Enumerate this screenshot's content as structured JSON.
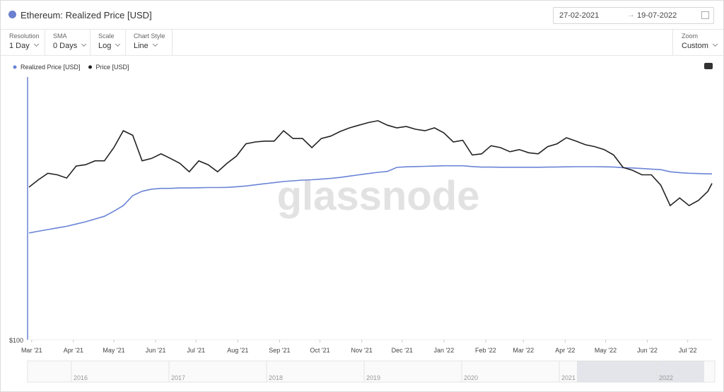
{
  "header": {
    "title": "Ethereum: Realized Price [USD]",
    "date_from": "27-02-2021",
    "date_to": "19-07-2022"
  },
  "controls": [
    {
      "label": "Resolution",
      "value": "1 Day"
    },
    {
      "label": "SMA",
      "value": "0 Days"
    },
    {
      "label": "Scale",
      "value": "Log"
    },
    {
      "label": "Chart Style",
      "value": "Line"
    }
  ],
  "zoom": {
    "label": "Zoom",
    "value": "Custom"
  },
  "watermark": "glassnode",
  "navigator": {
    "years": [
      "2016",
      "2017",
      "2018",
      "2019",
      "2020",
      "2021",
      "2022"
    ]
  },
  "chart_data": {
    "type": "line",
    "log_scale": true,
    "legend": "top-left",
    "xlim": [
      "2021-02-27",
      "2022-07-19"
    ],
    "xticks": [
      {
        "value": "2021-03-01",
        "label": "Mar '21"
      },
      {
        "value": "2021-04-01",
        "label": "Apr '21"
      },
      {
        "value": "2021-05-01",
        "label": "May '21"
      },
      {
        "value": "2021-06-01",
        "label": "Jun '21"
      },
      {
        "value": "2021-07-01",
        "label": "Jul '21"
      },
      {
        "value": "2021-08-01",
        "label": "Aug '21"
      },
      {
        "value": "2021-09-01",
        "label": "Sep '21"
      },
      {
        "value": "2021-10-01",
        "label": "Oct '21"
      },
      {
        "value": "2021-11-01",
        "label": "Nov '21"
      },
      {
        "value": "2021-12-01",
        "label": "Dec '21"
      },
      {
        "value": "2022-01-01",
        "label": "Jan '22"
      },
      {
        "value": "2022-02-01",
        "label": "Feb '22"
      },
      {
        "value": "2022-03-01",
        "label": "Mar '22"
      },
      {
        "value": "2022-04-01",
        "label": "Apr '22"
      },
      {
        "value": "2022-05-01",
        "label": "May '22"
      },
      {
        "value": "2022-06-01",
        "label": "Jun '22"
      },
      {
        "value": "2022-07-01",
        "label": "Jul '22"
      }
    ],
    "ylim": [
      100,
      10000
    ],
    "yticks": [
      {
        "value": 100,
        "label": "$100"
      }
    ],
    "x": [
      "2021-02-27",
      "2021-03-06",
      "2021-03-13",
      "2021-03-20",
      "2021-03-27",
      "2021-04-03",
      "2021-04-10",
      "2021-04-17",
      "2021-04-24",
      "2021-05-01",
      "2021-05-08",
      "2021-05-15",
      "2021-05-22",
      "2021-05-29",
      "2021-06-05",
      "2021-06-12",
      "2021-06-19",
      "2021-06-26",
      "2021-07-03",
      "2021-07-10",
      "2021-07-17",
      "2021-07-24",
      "2021-07-31",
      "2021-08-07",
      "2021-08-14",
      "2021-08-21",
      "2021-08-28",
      "2021-09-04",
      "2021-09-11",
      "2021-09-18",
      "2021-09-25",
      "2021-10-02",
      "2021-10-09",
      "2021-10-16",
      "2021-10-23",
      "2021-10-30",
      "2021-11-06",
      "2021-11-13",
      "2021-11-20",
      "2021-11-27",
      "2021-12-04",
      "2021-12-11",
      "2021-12-18",
      "2021-12-25",
      "2022-01-01",
      "2022-01-08",
      "2022-01-15",
      "2022-01-22",
      "2022-01-29",
      "2022-02-05",
      "2022-02-12",
      "2022-02-19",
      "2022-02-26",
      "2022-03-05",
      "2022-03-12",
      "2022-03-19",
      "2022-03-26",
      "2022-04-02",
      "2022-04-09",
      "2022-04-16",
      "2022-04-23",
      "2022-04-30",
      "2022-05-07",
      "2022-05-14",
      "2022-05-21",
      "2022-05-28",
      "2022-06-04",
      "2022-06-11",
      "2022-06-18",
      "2022-06-25",
      "2022-07-02",
      "2022-07-09",
      "2022-07-16",
      "2022-07-19"
    ],
    "series": [
      {
        "name": "Realized Price [USD]",
        "color": "#6b84d6",
        "values": [
          650,
          670,
          690,
          710,
          730,
          760,
          790,
          830,
          870,
          950,
          1050,
          1250,
          1350,
          1400,
          1420,
          1420,
          1430,
          1430,
          1435,
          1440,
          1440,
          1445,
          1460,
          1480,
          1510,
          1540,
          1570,
          1600,
          1620,
          1640,
          1650,
          1670,
          1690,
          1720,
          1760,
          1800,
          1840,
          1880,
          1910,
          2050,
          2070,
          2080,
          2090,
          2100,
          2110,
          2110,
          2110,
          2080,
          2060,
          2060,
          2055,
          2055,
          2055,
          2055,
          2055,
          2060,
          2065,
          2070,
          2075,
          2075,
          2075,
          2070,
          2065,
          2040,
          2030,
          2010,
          1990,
          1970,
          1900,
          1870,
          1850,
          1840,
          1830,
          1830
        ]
      },
      {
        "name": "Price [USD]",
        "color": "#222222",
        "values": [
          1450,
          1650,
          1850,
          1800,
          1700,
          2100,
          2150,
          2300,
          2300,
          2900,
          3900,
          3600,
          2300,
          2400,
          2600,
          2400,
          2200,
          1900,
          2300,
          2150,
          1900,
          2200,
          2500,
          3100,
          3200,
          3250,
          3250,
          3900,
          3400,
          3400,
          2900,
          3400,
          3550,
          3850,
          4100,
          4300,
          4500,
          4650,
          4300,
          4100,
          4200,
          4000,
          3900,
          4100,
          3750,
          3200,
          3300,
          2550,
          2600,
          3000,
          2900,
          2700,
          2800,
          2650,
          2600,
          2950,
          3100,
          3450,
          3250,
          3050,
          2950,
          2800,
          2550,
          2050,
          1950,
          1800,
          1800,
          1500,
          1050,
          1200,
          1050,
          1150,
          1350,
          1550
        ]
      }
    ]
  }
}
